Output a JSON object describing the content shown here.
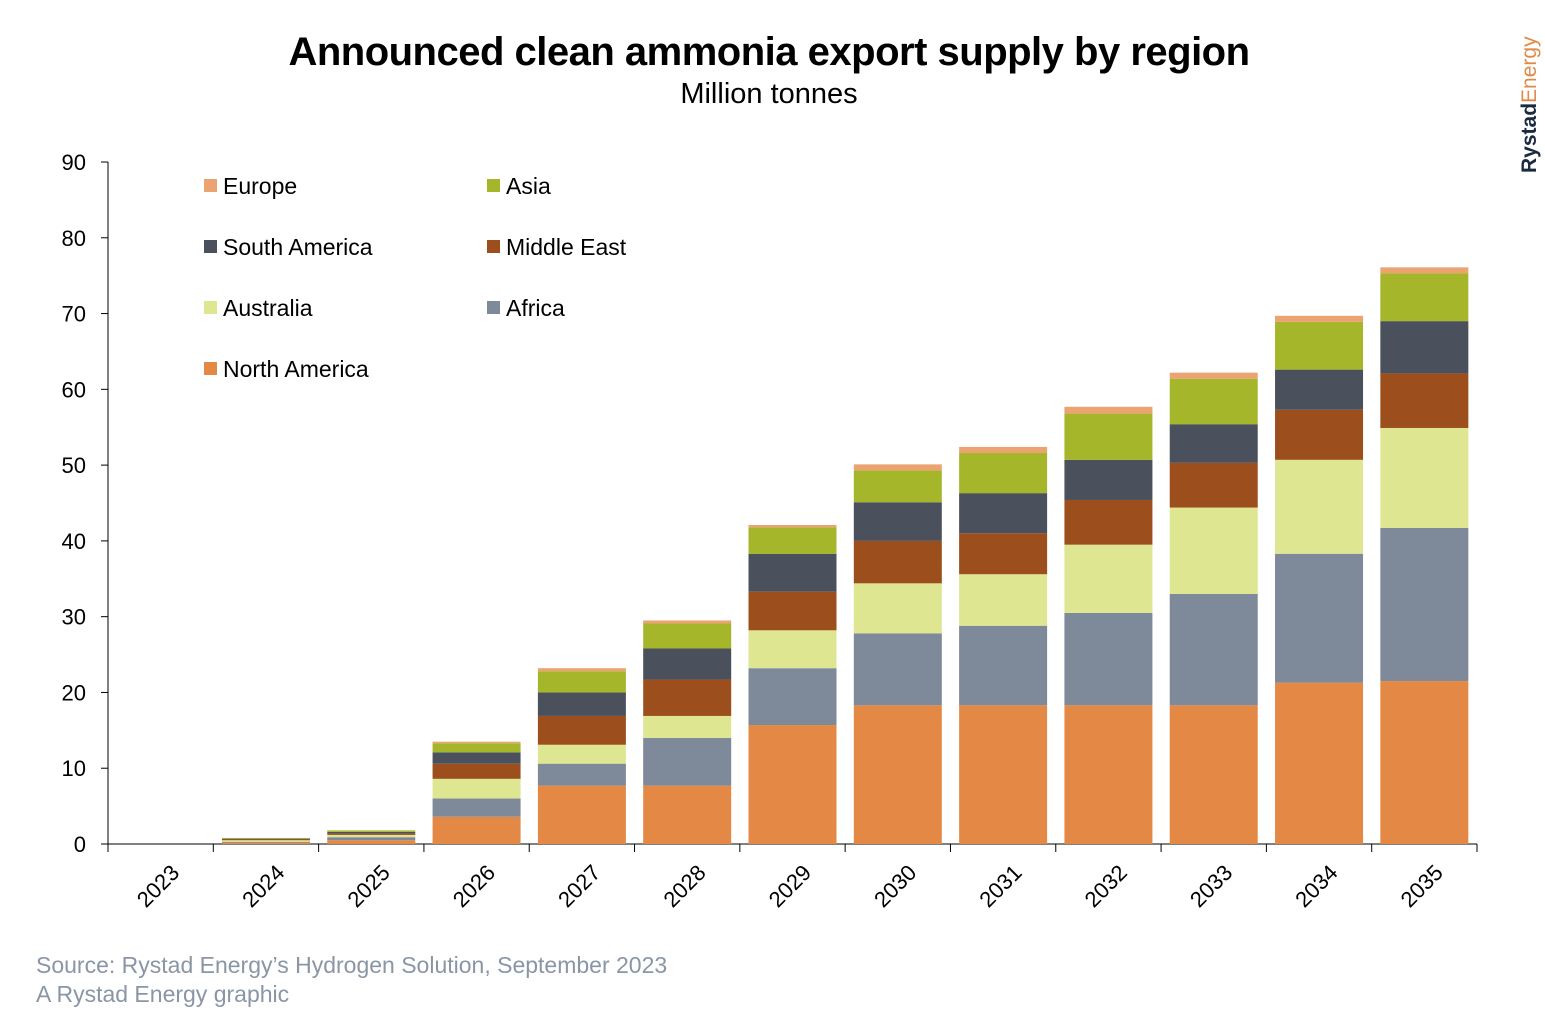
{
  "header": {
    "title": "Announced clean ammonia export supply by region",
    "subtitle": "Million tonnes"
  },
  "logo": {
    "text_part1": "Rystad",
    "text_part2": "Energy",
    "color_part1": "#1b2a3f",
    "color_part2": "#e08a47"
  },
  "footer": {
    "source": "Source: Rystad Energy’s Hydrogen Solution, September 2023",
    "credit": "A Rystad Energy graphic"
  },
  "chart_data": {
    "type": "bar",
    "stacked": true,
    "categories": [
      "2023",
      "2024",
      "2025",
      "2026",
      "2027",
      "2028",
      "2029",
      "2030",
      "2031",
      "2032",
      "2033",
      "2034",
      "2035"
    ],
    "ylim": [
      0,
      90
    ],
    "yticks": [
      0,
      10,
      20,
      30,
      40,
      50,
      60,
      70,
      80,
      90
    ],
    "legend_position": "top-left",
    "series": [
      {
        "name": "North America",
        "color": "#e48945",
        "values": [
          0,
          0.2,
          0.5,
          3.6,
          7.7,
          7.7,
          15.7,
          18.3,
          18.3,
          18.3,
          18.3,
          21.3,
          21.5
        ]
      },
      {
        "name": "Africa",
        "color": "#7e8999",
        "values": [
          0,
          0.1,
          0.4,
          2.4,
          2.9,
          6.3,
          7.5,
          9.5,
          10.5,
          12.2,
          14.7,
          17.0,
          20.2
        ]
      },
      {
        "name": "Australia",
        "color": "#dfe692",
        "values": [
          0,
          0.2,
          0.3,
          2.6,
          2.5,
          2.9,
          5.0,
          6.6,
          6.8,
          9.0,
          11.4,
          12.4,
          13.2
        ]
      },
      {
        "name": "Middle East",
        "color": "#9c4f1c",
        "values": [
          0,
          0.1,
          0.2,
          2.0,
          3.8,
          4.8,
          5.1,
          5.6,
          5.4,
          5.9,
          5.9,
          6.6,
          7.2
        ]
      },
      {
        "name": "South America",
        "color": "#4a505c",
        "values": [
          0,
          0.1,
          0.2,
          1.5,
          3.1,
          4.1,
          5.0,
          5.1,
          5.3,
          5.3,
          5.1,
          5.3,
          6.9
        ]
      },
      {
        "name": "Asia",
        "color": "#a6b62b",
        "values": [
          0,
          0.1,
          0.2,
          1.2,
          2.8,
          3.3,
          3.5,
          4.2,
          5.3,
          6.1,
          6.0,
          6.3,
          6.3
        ]
      },
      {
        "name": "Europe",
        "color": "#eba371",
        "values": [
          0,
          0,
          0,
          0.2,
          0.4,
          0.4,
          0.3,
          0.8,
          0.8,
          0.9,
          0.8,
          0.8,
          0.8
        ]
      }
    ],
    "legend_order": [
      "Europe",
      "Asia",
      "South America",
      "Middle East",
      "Australia",
      "Africa",
      "North America"
    ]
  }
}
